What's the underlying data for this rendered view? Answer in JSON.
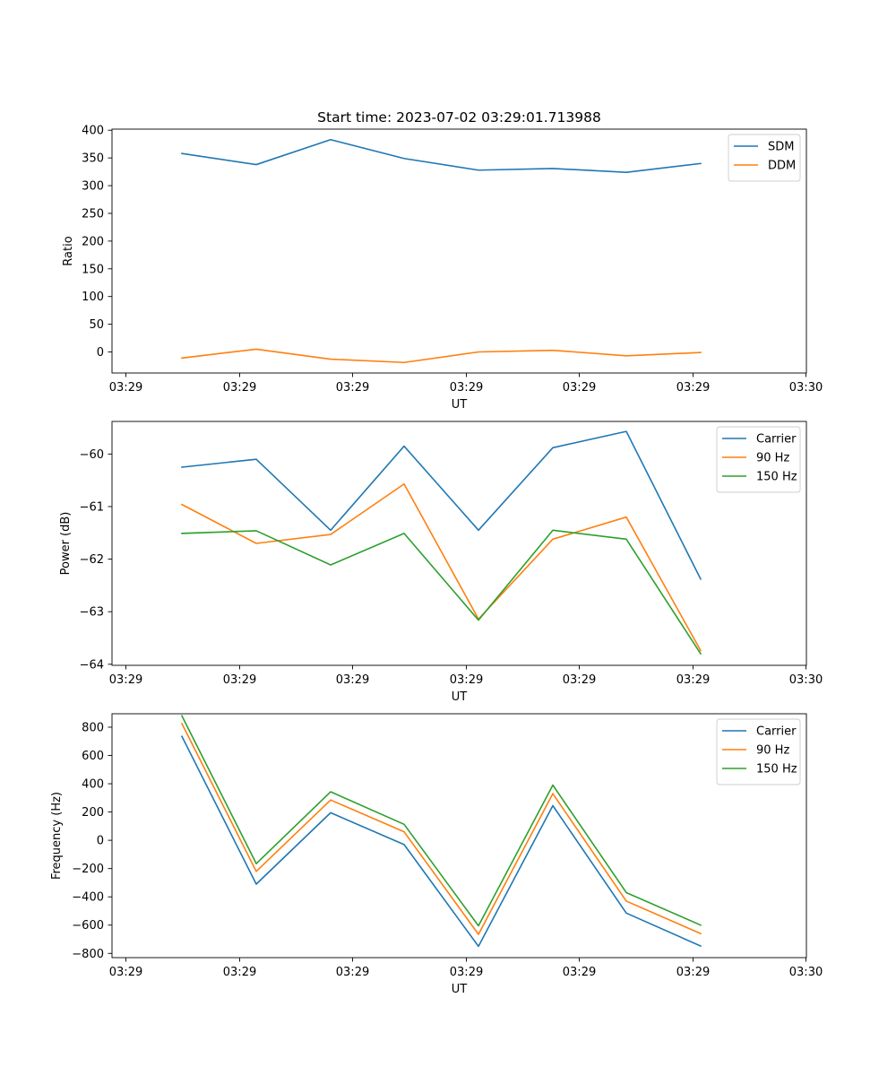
{
  "figure_title": "Start time: 2023-07-02 03:29:01.713988",
  "colors": {
    "blue": "#1f77b4",
    "orange": "#ff7f0e",
    "green": "#2ca02c"
  },
  "chart_data": [
    {
      "type": "line",
      "title": "Start time: 2023-07-02 03:29:01.713988",
      "xlabel": "UT",
      "ylabel": "Ratio",
      "xticks": [
        "03:29",
        "03:29",
        "03:29",
        "03:29",
        "03:29",
        "03:29",
        "03:29",
        "03:30"
      ],
      "yticks": [
        0,
        50,
        100,
        150,
        200,
        250,
        300,
        350,
        400
      ],
      "ylim": [
        -38,
        402
      ],
      "legend": "top-right",
      "series": [
        {
          "name": "SDM",
          "color": "#1f77b4",
          "values": [
            358,
            338,
            383,
            349,
            328,
            331,
            324,
            340
          ]
        },
        {
          "name": "DDM",
          "color": "#ff7f0e",
          "values": [
            -11,
            5,
            -13,
            -19,
            0,
            3,
            -7,
            -1
          ]
        }
      ]
    },
    {
      "type": "line",
      "title": "",
      "xlabel": "UT",
      "ylabel": "Power (dB)",
      "xticks": [
        "03:29",
        "03:29",
        "03:29",
        "03:29",
        "03:29",
        "03:29",
        "03:29",
        "03:30"
      ],
      "yticks": [
        -64,
        -63,
        -62,
        -61,
        -60
      ],
      "ylim": [
        -64.02,
        -59.38
      ],
      "legend": "top-right",
      "series": [
        {
          "name": "Carrier",
          "color": "#1f77b4",
          "values": [
            -60.25,
            -60.1,
            -61.45,
            -59.85,
            -61.45,
            -59.88,
            -59.57,
            -62.38
          ]
        },
        {
          "name": "90 Hz",
          "color": "#ff7f0e",
          "values": [
            -60.96,
            -61.7,
            -61.53,
            -60.57,
            -63.14,
            -61.62,
            -61.2,
            -63.74
          ]
        },
        {
          "name": "150 Hz",
          "color": "#2ca02c",
          "values": [
            -61.51,
            -61.46,
            -62.11,
            -61.51,
            -63.16,
            -61.45,
            -61.62,
            -63.8
          ]
        }
      ]
    },
    {
      "type": "line",
      "title": "",
      "xlabel": "UT",
      "ylabel": "Frequency (Hz)",
      "xticks": [
        "03:29",
        "03:29",
        "03:29",
        "03:29",
        "03:29",
        "03:29",
        "03:29",
        "03:30"
      ],
      "yticks": [
        -800,
        -600,
        -400,
        -200,
        0,
        200,
        400,
        600,
        800
      ],
      "ylim": [
        -830,
        895
      ],
      "legend": "top-right",
      "series": [
        {
          "name": "Carrier",
          "color": "#1f77b4",
          "values": [
            735,
            -310,
            195,
            -30,
            -750,
            245,
            -515,
            -748
          ]
        },
        {
          "name": "90 Hz",
          "color": "#ff7f0e",
          "values": [
            825,
            -220,
            285,
            60,
            -665,
            330,
            -430,
            -660
          ]
        },
        {
          "name": "150 Hz",
          "color": "#2ca02c",
          "values": [
            880,
            -165,
            343,
            113,
            -605,
            390,
            -370,
            -600
          ]
        }
      ]
    }
  ]
}
